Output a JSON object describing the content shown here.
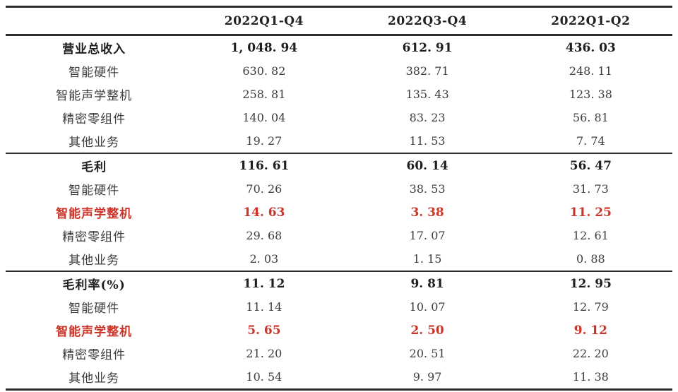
{
  "colors": {
    "background": "#ffffff",
    "text": "#3d3d3d",
    "strong_text": "#1f1f1f",
    "highlight_red": "#cc3428",
    "rule": "#2e2e2e"
  },
  "table": {
    "columns": [
      "2022Q1-Q4",
      "2022Q3-Q4",
      "2022Q1-Q2"
    ],
    "sections": [
      {
        "rows": [
          {
            "label": "营业总收入",
            "values": [
              "1, 048. 94",
              "612. 91",
              "436. 03"
            ],
            "style": "total"
          },
          {
            "label": "智能硬件",
            "values": [
              "630. 82",
              "382. 71",
              "248. 11"
            ],
            "style": "normal"
          },
          {
            "label": "智能声学整机",
            "values": [
              "258. 81",
              "135. 43",
              "123. 38"
            ],
            "style": "normal"
          },
          {
            "label": "精密零组件",
            "values": [
              "140. 04",
              "83. 23",
              "56. 81"
            ],
            "style": "normal"
          },
          {
            "label": "其他业务",
            "values": [
              "19. 27",
              "11. 53",
              "7. 74"
            ],
            "style": "normal"
          }
        ]
      },
      {
        "rows": [
          {
            "label": "毛利",
            "values": [
              "116. 61",
              "60. 14",
              "56. 47"
            ],
            "style": "total"
          },
          {
            "label": "智能硬件",
            "values": [
              "70. 26",
              "38. 53",
              "31. 73"
            ],
            "style": "normal"
          },
          {
            "label": "智能声学整机",
            "values": [
              "14. 63",
              "3. 38",
              "11. 25"
            ],
            "style": "highlight"
          },
          {
            "label": "精密零组件",
            "values": [
              "29. 68",
              "17. 07",
              "12. 61"
            ],
            "style": "normal"
          },
          {
            "label": "其他业务",
            "values": [
              "2. 03",
              "1. 15",
              "0. 88"
            ],
            "style": "normal"
          }
        ]
      },
      {
        "rows": [
          {
            "label": "毛利率(%)",
            "values": [
              "11. 12",
              "9. 81",
              "12. 95"
            ],
            "style": "total"
          },
          {
            "label": "智能硬件",
            "values": [
              "11. 14",
              "10. 07",
              "12. 79"
            ],
            "style": "normal"
          },
          {
            "label": "智能声学整机",
            "values": [
              "5. 65",
              "2. 50",
              "9. 12"
            ],
            "style": "highlight"
          },
          {
            "label": "精密零组件",
            "values": [
              "21. 20",
              "20. 51",
              "22. 20"
            ],
            "style": "normal"
          },
          {
            "label": "其他业务",
            "values": [
              "10. 54",
              "9. 97",
              "11. 38"
            ],
            "style": "normal"
          }
        ]
      }
    ]
  },
  "chart_data": {
    "type": "table",
    "columns": [
      "2022Q1-Q4",
      "2022Q3-Q4",
      "2022Q1-Q2"
    ],
    "sections": [
      {
        "metric": "营业总收入",
        "total": [
          1048.94,
          612.91,
          436.03
        ],
        "rows": [
          {
            "label": "智能硬件",
            "values": [
              630.82,
              382.71,
              248.11
            ],
            "highlight": false
          },
          {
            "label": "智能声学整机",
            "values": [
              258.81,
              135.43,
              123.38
            ],
            "highlight": false
          },
          {
            "label": "精密零组件",
            "values": [
              140.04,
              83.23,
              56.81
            ],
            "highlight": false
          },
          {
            "label": "其他业务",
            "values": [
              19.27,
              11.53,
              7.74
            ],
            "highlight": false
          }
        ]
      },
      {
        "metric": "毛利",
        "total": [
          116.61,
          60.14,
          56.47
        ],
        "rows": [
          {
            "label": "智能硬件",
            "values": [
              70.26,
              38.53,
              31.73
            ],
            "highlight": false
          },
          {
            "label": "智能声学整机",
            "values": [
              14.63,
              3.38,
              11.25
            ],
            "highlight": true
          },
          {
            "label": "精密零组件",
            "values": [
              29.68,
              17.07,
              12.61
            ],
            "highlight": false
          },
          {
            "label": "其他业务",
            "values": [
              2.03,
              1.15,
              0.88
            ],
            "highlight": false
          }
        ]
      },
      {
        "metric": "毛利率(%)",
        "total": [
          11.12,
          9.81,
          12.95
        ],
        "rows": [
          {
            "label": "智能硬件",
            "values": [
              11.14,
              10.07,
              12.79
            ],
            "highlight": false
          },
          {
            "label": "智能声学整机",
            "values": [
              5.65,
              2.5,
              9.12
            ],
            "highlight": true
          },
          {
            "label": "精密零组件",
            "values": [
              21.2,
              20.51,
              22.2
            ],
            "highlight": false
          },
          {
            "label": "其他业务",
            "values": [
              10.54,
              9.97,
              11.38
            ],
            "highlight": false
          }
        ]
      }
    ]
  }
}
